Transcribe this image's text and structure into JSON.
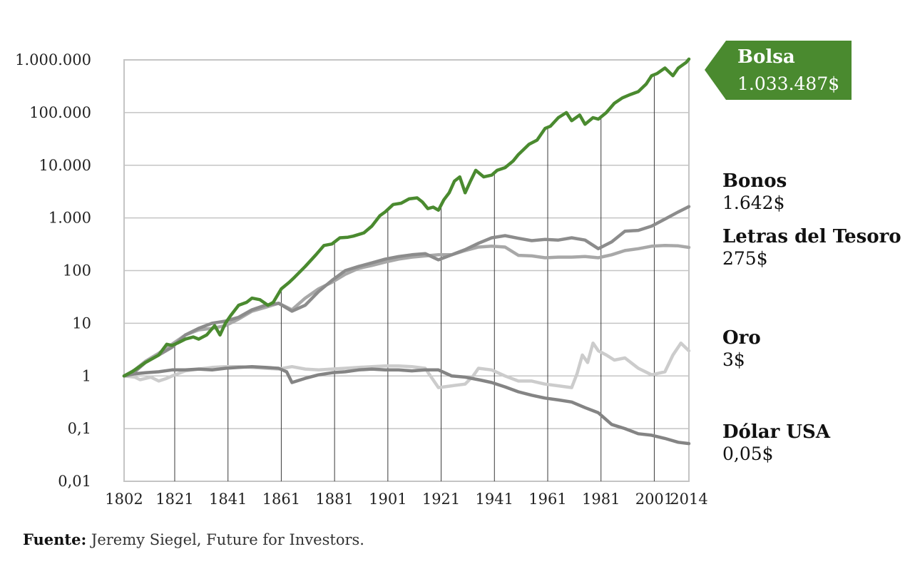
{
  "chart_data": {
    "type": "line",
    "title": "",
    "xlabel": "",
    "ylabel": "",
    "yscale": "log",
    "ylim": [
      0.01,
      1000000
    ],
    "xlim": [
      1802,
      2014
    ],
    "grid": "horizontal major lines; vertical lines drawn under the Bolsa series at each labeled year",
    "x_tick_labels": [
      "1802",
      "1821",
      "1841",
      "1861",
      "1881",
      "1901",
      "1921",
      "1941",
      "1961",
      "1981",
      "2001",
      "2014"
    ],
    "y_tick_labels": [
      "0,01",
      "0,1",
      "1",
      "10",
      "100",
      "1.000",
      "10.000",
      "100.000",
      "1.000.000"
    ],
    "y_tick_values": [
      0.01,
      0.1,
      1,
      10,
      100,
      1000,
      10000,
      100000,
      1000000
    ],
    "colors": {
      "Bolsa": "#4a8a2f",
      "Bonos": "#8c8c8c",
      "Letras del Tesoro": "#a8a8a8",
      "Oro": "#cccccc",
      "Dólar USA": "#848484"
    },
    "series": [
      {
        "name": "Bolsa",
        "label_name": "Bolsa",
        "label_value": "1.033.487$",
        "x": [
          1802,
          1805,
          1810,
          1815,
          1818,
          1820,
          1822,
          1825,
          1828,
          1830,
          1833,
          1836,
          1838,
          1840,
          1842,
          1845,
          1848,
          1850,
          1853,
          1856,
          1858,
          1861,
          1864,
          1866,
          1870,
          1874,
          1877,
          1880,
          1883,
          1886,
          1888,
          1892,
          1895,
          1898,
          1900,
          1903,
          1906,
          1909,
          1912,
          1914,
          1916,
          1918,
          1920,
          1922,
          1924,
          1926,
          1928,
          1930,
          1932,
          1934,
          1937,
          1940,
          1942,
          1945,
          1948,
          1950,
          1954,
          1957,
          1960,
          1962,
          1965,
          1968,
          1970,
          1973,
          1975,
          1978,
          1980,
          1983,
          1986,
          1989,
          1992,
          1995,
          1998,
          2000,
          2002,
          2005,
          2008,
          2010,
          2013,
          2014
        ],
        "values": [
          1,
          1.2,
          1.8,
          2.5,
          4,
          3.8,
          4.2,
          5,
          5.5,
          5,
          6,
          9,
          6,
          10,
          14,
          22,
          25,
          30,
          28,
          22,
          25,
          45,
          60,
          75,
          120,
          200,
          300,
          320,
          420,
          430,
          450,
          520,
          700,
          1100,
          1300,
          1800,
          1900,
          2300,
          2400,
          2000,
          1500,
          1600,
          1400,
          2200,
          3000,
          5000,
          6000,
          3000,
          5000,
          8000,
          6000,
          6500,
          8000,
          9000,
          12000,
          16000,
          25000,
          30000,
          50000,
          55000,
          80000,
          100000,
          70000,
          90000,
          60000,
          80000,
          75000,
          100000,
          150000,
          190000,
          220000,
          250000,
          350000,
          500000,
          550000,
          700000,
          500000,
          700000,
          900000,
          1033487
        ]
      },
      {
        "name": "Bonos",
        "label_name": "Bonos",
        "label_value": "1.642$",
        "x": [
          1802,
          1806,
          1810,
          1815,
          1820,
          1825,
          1830,
          1835,
          1840,
          1845,
          1850,
          1855,
          1860,
          1865,
          1870,
          1875,
          1880,
          1885,
          1890,
          1895,
          1900,
          1905,
          1910,
          1915,
          1920,
          1925,
          1930,
          1935,
          1940,
          1945,
          1950,
          1955,
          1960,
          1965,
          1970,
          1975,
          1980,
          1985,
          1990,
          1995,
          2000,
          2005,
          2010,
          2014
        ],
        "values": [
          1,
          1.2,
          1.8,
          2.5,
          3.5,
          6,
          8,
          10,
          11,
          13,
          18,
          22,
          24,
          17,
          22,
          40,
          65,
          100,
          120,
          140,
          165,
          185,
          200,
          210,
          160,
          200,
          250,
          330,
          420,
          460,
          410,
          370,
          390,
          380,
          420,
          380,
          260,
          350,
          560,
          580,
          700,
          950,
          1300,
          1642
        ]
      },
      {
        "name": "Letras del Tesoro",
        "label_name": "Letras del Tesoro",
        "label_value": "275$",
        "x": [
          1802,
          1806,
          1810,
          1815,
          1820,
          1825,
          1830,
          1835,
          1840,
          1845,
          1850,
          1855,
          1860,
          1865,
          1870,
          1875,
          1880,
          1885,
          1890,
          1895,
          1900,
          1905,
          1910,
          1915,
          1920,
          1925,
          1930,
          1935,
          1940,
          1945,
          1950,
          1955,
          1960,
          1965,
          1970,
          1975,
          1980,
          1985,
          1990,
          1995,
          2000,
          2005,
          2010,
          2014
        ],
        "values": [
          1,
          1.3,
          1.9,
          2.7,
          4,
          6,
          7.5,
          8,
          9,
          12,
          17,
          20,
          24,
          18,
          30,
          45,
          60,
          85,
          110,
          125,
          145,
          165,
          180,
          190,
          200,
          200,
          240,
          280,
          290,
          280,
          195,
          190,
          175,
          180,
          180,
          185,
          175,
          200,
          240,
          260,
          290,
          300,
          295,
          275
        ]
      },
      {
        "name": "Oro",
        "label_name": "Oro",
        "label_value": "3$",
        "x": [
          1802,
          1806,
          1808,
          1812,
          1815,
          1818,
          1820,
          1825,
          1830,
          1835,
          1840,
          1845,
          1850,
          1855,
          1860,
          1865,
          1870,
          1875,
          1880,
          1885,
          1890,
          1895,
          1900,
          1905,
          1910,
          1915,
          1920,
          1925,
          1930,
          1933,
          1935,
          1940,
          1945,
          1950,
          1955,
          1960,
          1965,
          1970,
          1972,
          1974,
          1976,
          1978,
          1980,
          1983,
          1986,
          1990,
          1995,
          2000,
          2005,
          2008,
          2011,
          2014
        ],
        "values": [
          1,
          0.95,
          0.85,
          0.95,
          0.8,
          0.9,
          1,
          1.25,
          1.35,
          1.45,
          1.5,
          1.5,
          1.45,
          1.4,
          1.35,
          1.5,
          1.35,
          1.3,
          1.35,
          1.4,
          1.45,
          1.5,
          1.55,
          1.55,
          1.5,
          1.4,
          0.6,
          0.65,
          0.7,
          1.0,
          1.4,
          1.3,
          1.0,
          0.8,
          0.8,
          0.7,
          0.65,
          0.6,
          1.1,
          2.5,
          1.8,
          4.2,
          3,
          2.5,
          2,
          2.2,
          1.4,
          1.05,
          1.2,
          2.5,
          4.2,
          3
        ]
      },
      {
        "name": "Dólar USA",
        "label_name": "Dólar USA",
        "label_value": "0,05$",
        "x": [
          1802,
          1806,
          1810,
          1815,
          1820,
          1825,
          1830,
          1835,
          1840,
          1845,
          1850,
          1855,
          1860,
          1863,
          1865,
          1870,
          1875,
          1880,
          1885,
          1890,
          1895,
          1900,
          1905,
          1910,
          1915,
          1920,
          1925,
          1930,
          1935,
          1940,
          1945,
          1950,
          1955,
          1960,
          1965,
          1970,
          1975,
          1980,
          1985,
          1990,
          1995,
          2000,
          2005,
          2010,
          2014
        ],
        "values": [
          1,
          1.1,
          1.15,
          1.2,
          1.3,
          1.3,
          1.35,
          1.3,
          1.4,
          1.45,
          1.5,
          1.45,
          1.4,
          1.2,
          0.75,
          0.9,
          1.05,
          1.15,
          1.2,
          1.3,
          1.35,
          1.3,
          1.3,
          1.25,
          1.3,
          1.3,
          1.0,
          0.95,
          0.85,
          0.75,
          0.62,
          0.5,
          0.43,
          0.38,
          0.35,
          0.32,
          0.25,
          0.2,
          0.12,
          0.1,
          0.08,
          0.075,
          0.065,
          0.055,
          0.052
        ]
      }
    ]
  },
  "source": {
    "label": "Fuente:",
    "text": " Jeremy Siegel, Future for Investors."
  }
}
